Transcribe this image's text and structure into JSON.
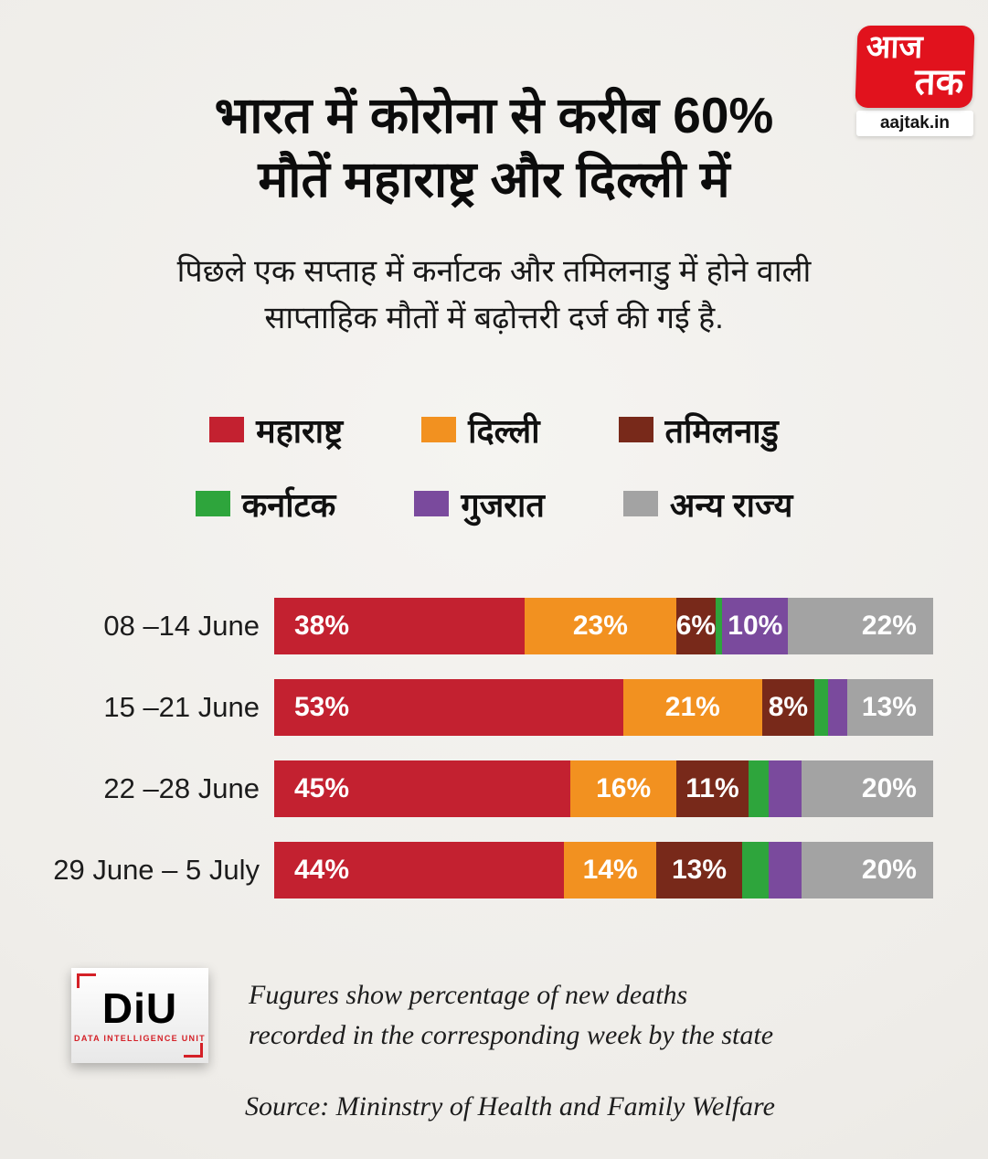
{
  "logo": {
    "line1": "आज",
    "line2": "तक",
    "site": "aajtak.in"
  },
  "title": {
    "line1": "भारत में कोरोना से करीब 60%",
    "line2": "मौतें महाराष्ट्र और दिल्ली में"
  },
  "subtitle": {
    "line1": "पिछले एक सप्ताह में कर्नाटक और तमिलनाडु में होने वाली",
    "line2": "साप्ताहिक मौतों में बढ़ोत्तरी दर्ज की गई है."
  },
  "colors": {
    "background": "#efede9",
    "maharashtra_red": "#c32130",
    "delhi_orange": "#f29120",
    "tamilnadu_brown": "#78291a",
    "karnataka_green": "#2ea53c",
    "gujarat_purple": "#7a4a9d",
    "other_gray": "#a3a3a3",
    "aajtak_red": "#e1121d",
    "diu_red": "#d42027"
  },
  "chart_data": {
    "type": "bar",
    "orientation": "horizontal-stacked",
    "value_unit": "percent of new deaths in week",
    "xlim": [
      0,
      100
    ],
    "categories": [
      "08 –14 June",
      "15 –21 June",
      "22 –28 June",
      "29 June – 5 July"
    ],
    "series": [
      {
        "name": "महाराष्ट्र",
        "color": "#c32130",
        "values": [
          38,
          53,
          45,
          44
        ],
        "labels": [
          "38%",
          "53%",
          "45%",
          "44%"
        ]
      },
      {
        "name": "दिल्ली",
        "color": "#f29120",
        "values": [
          23,
          21,
          16,
          14
        ],
        "labels": [
          "23%",
          "21%",
          "16%",
          "14%"
        ]
      },
      {
        "name": "तमिलनाडु",
        "color": "#78291a",
        "values": [
          6,
          8,
          11,
          13
        ],
        "labels": [
          "6%",
          "8%",
          "11%",
          "13%"
        ]
      },
      {
        "name": "कर्नाटक",
        "color": "#2ea53c",
        "values": [
          1,
          2,
          3,
          4
        ],
        "labels": [
          "",
          "",
          "",
          ""
        ]
      },
      {
        "name": "गुजरात",
        "color": "#7a4a9d",
        "values": [
          10,
          3,
          5,
          5
        ],
        "labels": [
          "10%",
          "",
          "",
          ""
        ]
      },
      {
        "name": "अन्य राज्य",
        "color": "#a3a3a3",
        "values": [
          22,
          13,
          20,
          20
        ],
        "labels": [
          "22%",
          "13%",
          "20%",
          "20%"
        ]
      }
    ],
    "legend_rows": [
      [
        0,
        1,
        2
      ],
      [
        3,
        4,
        5
      ]
    ],
    "legend_position": "top"
  },
  "footer": {
    "diu_name": "DiU",
    "diu_subtitle": "DATA INTELLIGENCE UNIT",
    "note_line1": "Fugures show percentage of new deaths",
    "note_line2": "recorded in the corresponding week by the state",
    "source": "Source: Mininstry of Health and Family Welfare"
  }
}
